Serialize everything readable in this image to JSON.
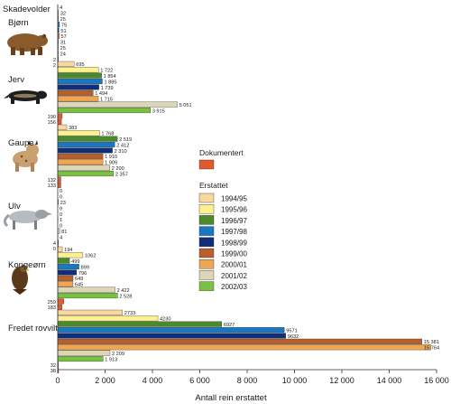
{
  "chart_data": {
    "type": "bar",
    "orientation": "horizontal",
    "title": "Skadevolder",
    "xlabel": "Antall rein erstattet",
    "xlim": [
      0,
      16000
    ],
    "x_ticks": [
      "0",
      "2 000",
      "4 000",
      "6 000",
      "8 000",
      "10 000",
      "12 000",
      "14 000",
      "16 000"
    ],
    "grid": false,
    "categories": [
      "Bjørn",
      "Jerv",
      "Gaupe",
      "Ulv",
      "Kongeørn",
      "Fredet rovvilt"
    ],
    "series": [
      {
        "name": "1994/95",
        "color": "#fbd7a0",
        "values": [
          4,
          695,
          383,
          0,
          194,
          2733
        ],
        "labels": [
          "4",
          "695",
          "383",
          "0",
          "194",
          "2733"
        ]
      },
      {
        "name": "1995/96",
        "color": "#fdf08e",
        "values": [
          32,
          1722,
          1768,
          0,
          1062,
          4230
        ],
        "labels": [
          "32",
          "1 722",
          "1 768",
          "0",
          "1062",
          "4230"
        ]
      },
      {
        "name": "1996/97",
        "color": "#4a8a2a",
        "values": [
          25,
          1854,
          2519,
          23,
          499,
          6927
        ],
        "labels": [
          "25",
          "1 854",
          "2 519",
          "23",
          "499",
          "6927"
        ]
      },
      {
        "name": "1997/98",
        "color": "#1a78c2",
        "values": [
          75,
          1885,
          2412,
          0,
          899,
          9571
        ],
        "labels": [
          "75",
          "1 885",
          "2 412",
          "0",
          "899",
          "9571"
        ]
      },
      {
        "name": "1998/99",
        "color": "#0f2f7a",
        "values": [
          51,
          1739,
          2310,
          0,
          796,
          9632
        ],
        "labels": [
          "51",
          "1 739",
          "2 310",
          "0",
          "796",
          "9632"
        ]
      },
      {
        "name": "1999/00",
        "color": "#b85f2e",
        "values": [
          57,
          1494,
          1910,
          1,
          649,
          15381
        ],
        "labels": [
          "57",
          "1 494",
          "1 910",
          "1",
          "649",
          "15 381"
        ]
      },
      {
        "name": "2000/01",
        "color": "#f0a64e",
        "values": [
          31,
          1715,
          1909,
          0,
          645,
          15764
        ],
        "labels": [
          "31",
          "1 715",
          "1 909",
          "0",
          "645",
          "15 764"
        ]
      },
      {
        "name": "2001/02",
        "color": "#ddd6b6",
        "values": [
          25,
          5051,
          2200,
          81,
          2422,
          2209
        ],
        "labels": [
          "25",
          "5 051",
          "2 200",
          "81",
          "2 422",
          "2 209"
        ]
      },
      {
        "name": "2002/03",
        "color": "#7ac142",
        "values": [
          24,
          3915,
          2357,
          4,
          2528,
          1913
        ],
        "labels": [
          "24",
          "3 915",
          "2 357",
          "4",
          "2 528",
          "1 913"
        ]
      }
    ],
    "documented": {
      "name": "Dokumentert",
      "color": "#e05a2b",
      "values": [
        [
          2,
          2
        ],
        [
          190,
          156
        ],
        [
          132,
          133
        ],
        [
          4,
          0
        ],
        [
          259,
          183
        ],
        [
          32,
          38
        ]
      ],
      "labels": [
        [
          "2",
          "2"
        ],
        [
          "190",
          "156"
        ],
        [
          "132",
          "133"
        ],
        [
          "4",
          "0"
        ],
        [
          "259",
          "183"
        ],
        [
          "32",
          "38"
        ]
      ]
    },
    "legend": {
      "documented_title": "Dokumentert",
      "compensated_title": "Erstattet",
      "position": "right"
    }
  }
}
